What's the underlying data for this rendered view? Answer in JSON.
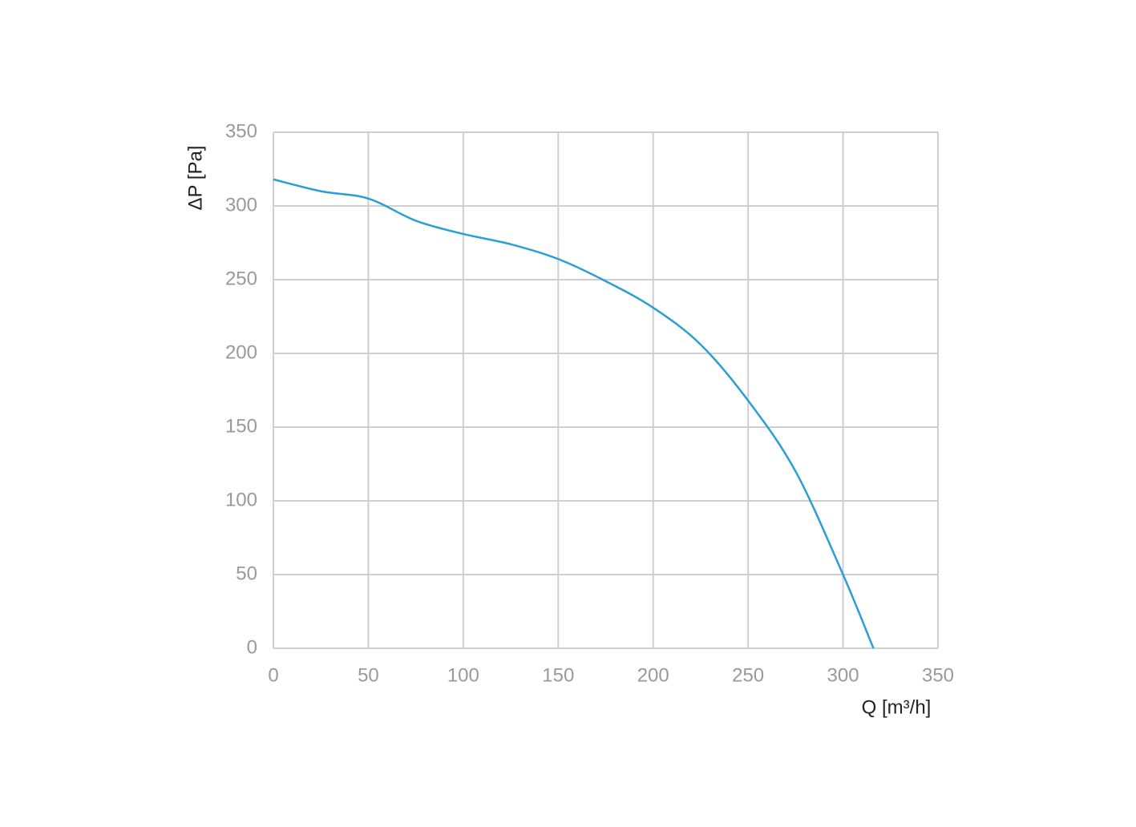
{
  "chart_data": {
    "type": "line",
    "x_label": "Q [m³/h]",
    "y_label": "ΔP [Pa]",
    "x": [
      0,
      25,
      50,
      75,
      100,
      125,
      150,
      175,
      200,
      225,
      250,
      275,
      300,
      316
    ],
    "series": [
      {
        "color": "#2a9fd6",
        "values": [
          318,
          310,
          305,
          290,
          281,
          274,
          264,
          249,
          231,
          206,
          168,
          120,
          50,
          0
        ]
      }
    ],
    "xlim": [
      0,
      350
    ],
    "ylim": [
      0,
      350
    ],
    "xticks": [
      0,
      50,
      100,
      150,
      200,
      250,
      300,
      350
    ],
    "yticks": [
      0,
      50,
      100,
      150,
      200,
      250,
      300,
      350
    ],
    "grid": true
  }
}
